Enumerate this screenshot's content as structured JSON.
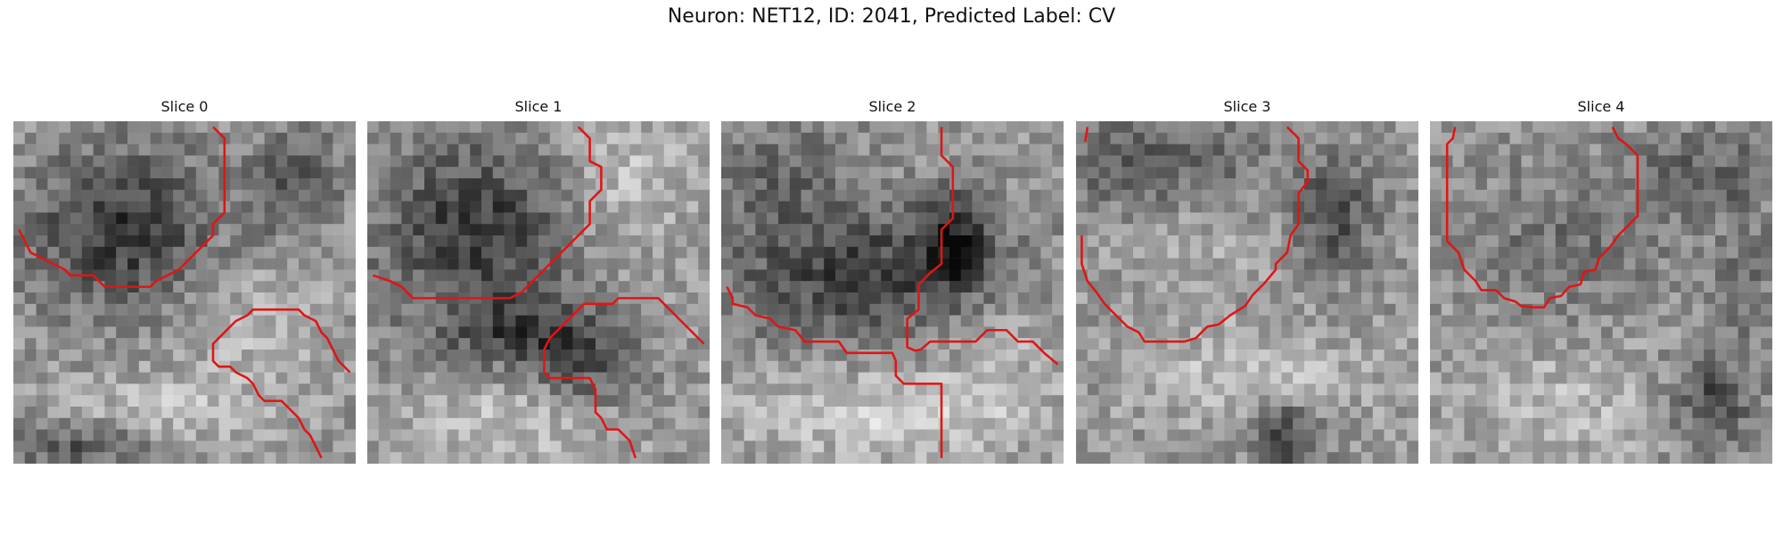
{
  "figure": {
    "title": "Neuron: NET12, ID: 2041, Predicted Label: CV"
  },
  "slices": [
    {
      "title": "Slice 0"
    },
    {
      "title": "Slice 1"
    },
    {
      "title": "Slice 2"
    },
    {
      "title": "Slice 3"
    },
    {
      "title": "Slice 4"
    }
  ],
  "colors": {
    "contour": "#e01515",
    "background": "#ffffff"
  }
}
